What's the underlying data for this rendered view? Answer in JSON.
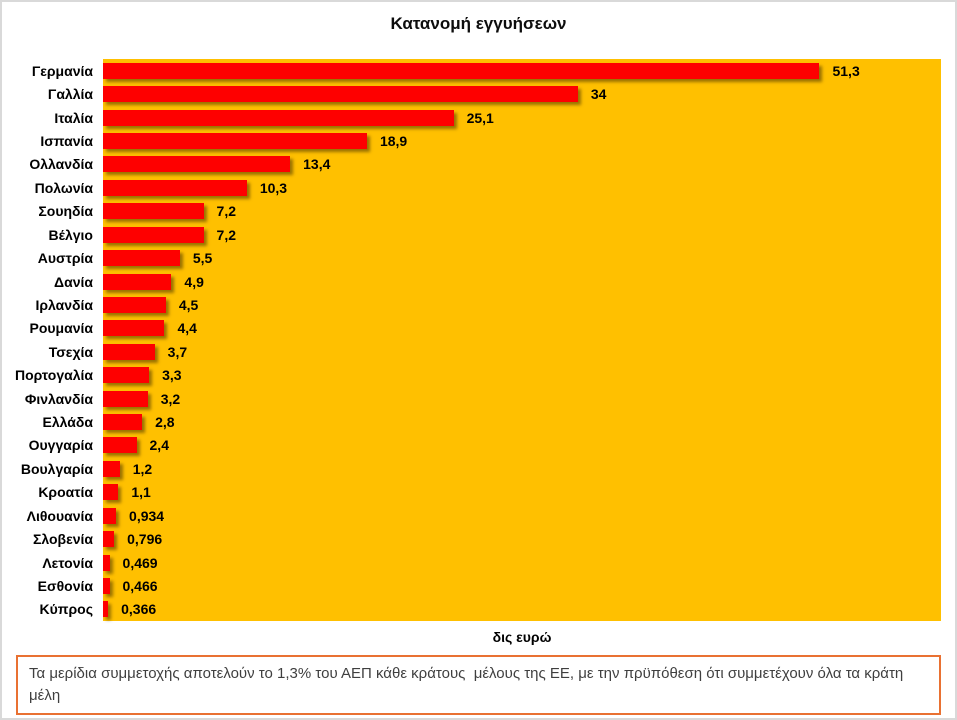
{
  "title": "Κατανομή εγγυήσεων",
  "colors": {
    "plot_background": "#FFC000",
    "bar_color": "#FE0000",
    "frame_border": "#D9D9D9",
    "footnote_border": "#E97132",
    "footnote_text": "#3F3F3F"
  },
  "footnote": "Τα μερίδια συμμετοχής αποτελούν το 1,3% του ΑΕΠ κάθε κράτους  μέλους της ΕΕ, με την πρϋπόθεση ότι συμμετέχουν όλα τα κράτη μέλη",
  "chart_data": {
    "type": "bar",
    "orientation": "horizontal",
    "title": "Κατανομή εγγυήσεων",
    "xlabel": "δις ευρώ",
    "ylabel": "",
    "xlim": [
      0,
      60
    ],
    "grid": false,
    "legend": false,
    "plot_background": "#FFC000",
    "bar_color": "#FE0000",
    "categories": [
      "Γερμανία",
      "Γαλλία",
      "Ιταλία",
      "Ισπανία",
      "Ολλανδία",
      "Πολωνία",
      "Σουηδία",
      "Βέλγιο",
      "Αυστρία",
      "Δανία",
      "Ιρλανδία",
      "Ρουμανία",
      "Τσεχία",
      "Πορτογαλία",
      "Φινλανδία",
      "Ελλάδα",
      "Ουγγαρία",
      "Βουλγαρία",
      "Κροατία",
      "Λιθουανία",
      "Σλοβενία",
      "Λετονία",
      "Εσθονία",
      "Κύπρος"
    ],
    "values": [
      51.3,
      34,
      25.1,
      18.9,
      13.4,
      10.3,
      7.2,
      7.2,
      5.5,
      4.9,
      4.5,
      4.4,
      3.7,
      3.3,
      3.2,
      2.8,
      2.4,
      1.2,
      1.1,
      0.934,
      0.796,
      0.469,
      0.466,
      0.366
    ],
    "value_labels": [
      "51,3",
      "34",
      "25,1",
      "18,9",
      "13,4",
      "10,3",
      "7,2",
      "7,2",
      "5,5",
      "4,9",
      "4,5",
      "4,4",
      "3,7",
      "3,3",
      "3,2",
      "2,8",
      "2,4",
      "1,2",
      "1,1",
      "0,934",
      "0,796",
      "0,469",
      "0,466",
      "0,366"
    ]
  }
}
